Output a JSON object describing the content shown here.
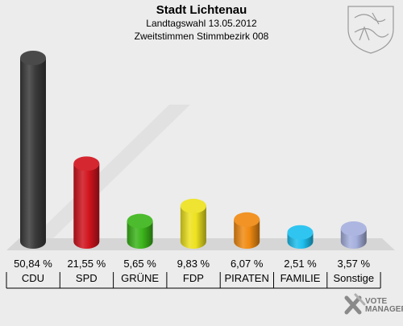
{
  "header": {
    "title": "Stadt Lichtenau",
    "subtitle1": "Landtagswahl 13.05.2012",
    "subtitle2": "Zweitstimmen Stimmbezirk 008"
  },
  "branding": {
    "line1": "VOTE",
    "line2": "MANAGER"
  },
  "chart_data": {
    "type": "bar",
    "title": "Stadt Lichtenau",
    "categories": [
      "CDU",
      "SPD",
      "GRÜNE",
      "FDP",
      "PIRATEN",
      "FAMILIE",
      "Sonstige"
    ],
    "values": [
      50.84,
      21.55,
      5.65,
      9.83,
      6.07,
      2.51,
      3.57
    ],
    "value_labels": [
      "50,84 %",
      "21,55 %",
      "5,65 %",
      "9,83 %",
      "6,07 %",
      "2,51 %",
      "3,57 %"
    ],
    "colors": [
      "#3a3a3a",
      "#d0141e",
      "#3cb51b",
      "#ede21f",
      "#f08a12",
      "#1ec0ef",
      "#a6b0de"
    ],
    "ylim": [
      0,
      50.84
    ],
    "grid": false,
    "legend": "none"
  }
}
